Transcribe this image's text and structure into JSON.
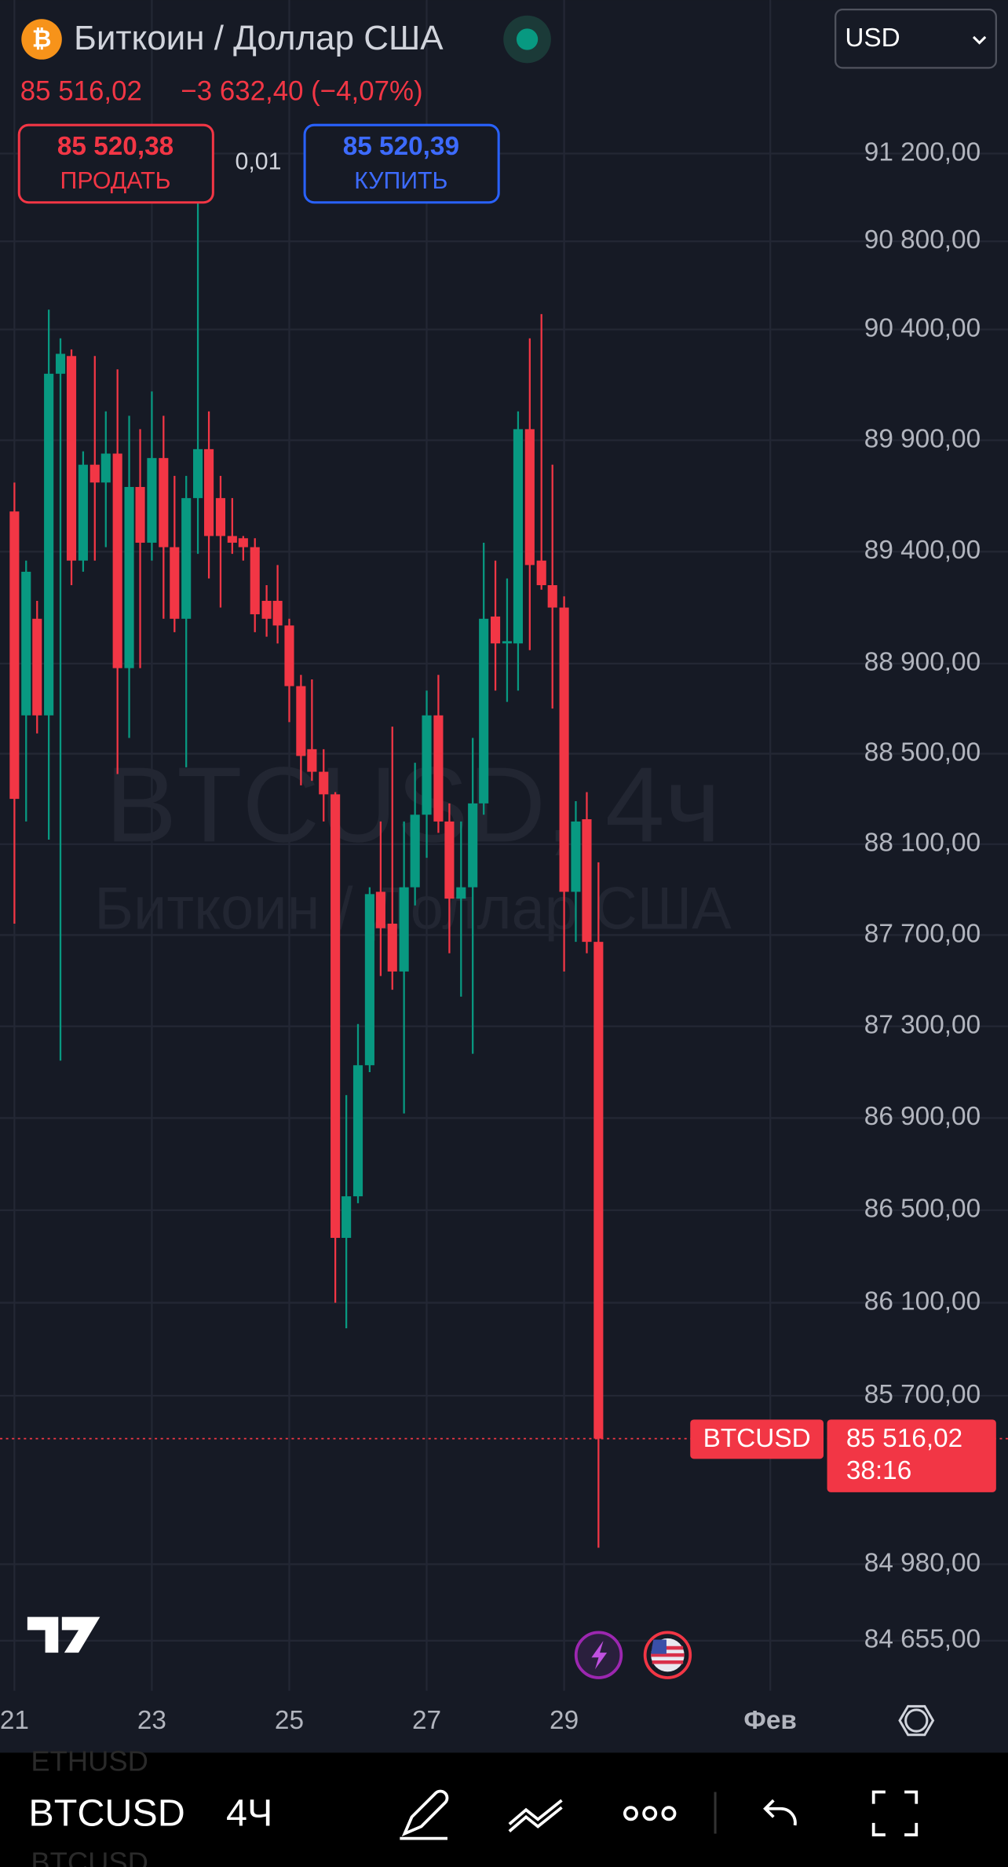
{
  "header": {
    "symbol_title": "Биткоин / Доллар США",
    "price": "85 516,02",
    "change": "−3 632,40 (−4,07%)",
    "currency": "USD",
    "sell": {
      "price": "85 520,38",
      "label": "ПРОДАТЬ"
    },
    "spread": "0,01",
    "buy": {
      "price": "85 520,39",
      "label": "КУПИТЬ"
    }
  },
  "chart_data": {
    "type": "candlestick",
    "title": "Биткоин / Доллар США",
    "watermark": "BTCUSD, 4ч",
    "log_scale": true,
    "grid": true,
    "up_color": "#089981",
    "down_color": "#f23645",
    "x": [
      21,
      21.17,
      21.33,
      21.5,
      21.67,
      21.83,
      22,
      22.17,
      22.33,
      22.5,
      22.67,
      22.83,
      23,
      23.17,
      23.33,
      23.5,
      23.67,
      23.83,
      24,
      24.17,
      24.33,
      24.5,
      24.67,
      24.83,
      25,
      25.17,
      25.33,
      25.5,
      25.67,
      25.83,
      26,
      26.17,
      26.33,
      26.5,
      26.67,
      26.83,
      27,
      27.17,
      27.33,
      27.5,
      27.67,
      27.83,
      28,
      28.17,
      28.33,
      28.5,
      28.67,
      28.83,
      29,
      29.17,
      29.33,
      29.5
    ],
    "open": [
      89580,
      88670,
      89100,
      88670,
      90200,
      90280,
      89360,
      89790,
      89710,
      89840,
      88880,
      89690,
      89440,
      89820,
      89420,
      89100,
      89640,
      89860,
      89640,
      89470,
      89460,
      89420,
      89180,
      89180,
      89070,
      88800,
      88520,
      88420,
      88320,
      86380,
      86560,
      87130,
      87890,
      87750,
      87540,
      87910,
      88230,
      88670,
      88200,
      87860,
      87910,
      88280,
      89110,
      88990,
      88990,
      89950,
      89360,
      89250,
      89150,
      87890,
      88210,
      87670
    ],
    "high": [
      89710,
      89360,
      89180,
      90490,
      90360,
      90310,
      89850,
      90280,
      90030,
      90220,
      90010,
      89950,
      90120,
      90010,
      89740,
      89740,
      90980,
      90030,
      89740,
      89640,
      89470,
      89460,
      89250,
      89340,
      89100,
      88850,
      88830,
      88520,
      88330,
      87000,
      87310,
      87910,
      88200,
      88620,
      88200,
      88460,
      88780,
      88850,
      88280,
      88200,
      88570,
      89440,
      89360,
      89280,
      90030,
      90360,
      90470,
      89790,
      89200,
      88290,
      88330,
      88020
    ],
    "low": [
      87750,
      88200,
      88590,
      88120,
      87150,
      89250,
      89310,
      89360,
      89420,
      88410,
      88570,
      88880,
      89360,
      89100,
      89040,
      88440,
      89390,
      89280,
      89150,
      89390,
      89360,
      89040,
      89020,
      88990,
      88640,
      88360,
      88380,
      88200,
      86100,
      85990,
      86530,
      87100,
      87520,
      87460,
      86920,
      87830,
      88040,
      88150,
      87620,
      87430,
      87180,
      88230,
      88780,
      88730,
      88780,
      88960,
      89230,
      88700,
      87540,
      87670,
      87620,
      85050
    ],
    "close": [
      88300,
      89310,
      88670,
      90200,
      90290,
      89360,
      89790,
      89710,
      89840,
      88880,
      89690,
      89440,
      89820,
      89420,
      89100,
      89640,
      89860,
      89470,
      89470,
      89440,
      89420,
      89120,
      89100,
      89070,
      88800,
      88490,
      88420,
      88320,
      86380,
      86560,
      87130,
      87880,
      87730,
      87540,
      87910,
      88230,
      88670,
      88200,
      87860,
      87910,
      88280,
      89100,
      88990,
      89000,
      89950,
      89340,
      89250,
      89150,
      87890,
      88200,
      87670,
      85516.02
    ],
    "xlim": [
      20.79,
      35.46
    ],
    "ylim": [
      84443,
      91904
    ],
    "xticks": [
      {
        "value": 21,
        "label": "21"
      },
      {
        "value": 23,
        "label": "23"
      },
      {
        "value": 25,
        "label": "25"
      },
      {
        "value": 27,
        "label": "27"
      },
      {
        "value": 29,
        "label": "29"
      },
      {
        "value": 32,
        "label": "Фев"
      }
    ],
    "yticks": [
      {
        "value": 91200,
        "label": "91 200,00"
      },
      {
        "value": 90800,
        "label": "90 800,00"
      },
      {
        "value": 90400,
        "label": "90 400,00"
      },
      {
        "value": 89900,
        "label": "89 900,00"
      },
      {
        "value": 89400,
        "label": "89 400,00"
      },
      {
        "value": 88900,
        "label": "88 900,00"
      },
      {
        "value": 88500,
        "label": "88 500,00"
      },
      {
        "value": 88100,
        "label": "88 100,00"
      },
      {
        "value": 87700,
        "label": "87 700,00"
      },
      {
        "value": 87300,
        "label": "87 300,00"
      },
      {
        "value": 86900,
        "label": "86 900,00"
      },
      {
        "value": 86500,
        "label": "86 500,00"
      },
      {
        "value": 86100,
        "label": "86 100,00"
      },
      {
        "value": 85700,
        "label": "85 700,00"
      },
      {
        "value": 84980,
        "label": "84 980,00"
      },
      {
        "value": 84655,
        "label": "84 655,00"
      }
    ],
    "last_price": {
      "name": "BTCUSD",
      "value": 85516.02,
      "value_label": "85 516,02",
      "countdown": "38:16"
    }
  },
  "toolbar": {
    "symbol": "BTCUSD",
    "interval": "4Ч",
    "list_above": "ETHUSD",
    "list_below": "BTCUSD"
  }
}
